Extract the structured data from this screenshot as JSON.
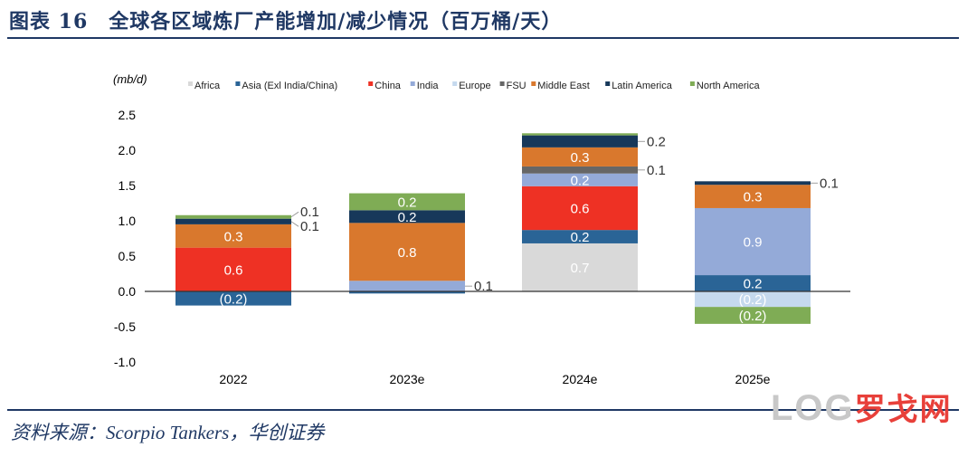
{
  "title": "图表 16　全球各区域炼厂产能增加/减少情况（百万桶/天）",
  "source": "资料来源：Scorpio Tankers，华创证券",
  "logo": {
    "text": "LOG",
    "cn": "罗戈网"
  },
  "chart_data": {
    "type": "bar",
    "stacked": true,
    "ylabel": "(mb/d)",
    "ylim": [
      -1.0,
      2.5
    ],
    "yticks": [
      "2.5",
      "2.0",
      "1.5",
      "1.0",
      "0.5",
      "0.0",
      "-0.5",
      "-1.0"
    ],
    "ytick_values": [
      2.5,
      2.0,
      1.5,
      1.0,
      0.5,
      0.0,
      -0.5,
      -1.0
    ],
    "categories": [
      "2022",
      "2023e",
      "2024e",
      "2025e"
    ],
    "legend_position": "top",
    "grid": false,
    "series": [
      {
        "name": "Africa",
        "color": "#d9d9d9",
        "values": [
          0,
          0,
          0.68,
          0
        ],
        "labels": [
          "",
          "",
          "0.7",
          ""
        ]
      },
      {
        "name": "Asia (Exl India/China)",
        "color": "#2a6496",
        "values": [
          -0.2,
          -0.03,
          0.19,
          0.23
        ],
        "labels": [
          "(0.2)",
          "",
          "0.2",
          "0.2"
        ]
      },
      {
        "name": "China",
        "color": "#ee3124",
        "values": [
          0.62,
          0,
          0.62,
          0
        ],
        "labels": [
          "0.6",
          "",
          "0.6",
          ""
        ]
      },
      {
        "name": "India",
        "color": "#94aad8",
        "values": [
          0,
          0.15,
          0.18,
          0.95
        ],
        "labels": [
          "",
          "0.1",
          "0.2",
          "0.9"
        ]
      },
      {
        "name": "Europe",
        "color": "#c5d9ee",
        "values": [
          0,
          0,
          0,
          -0.22
        ],
        "labels": [
          "",
          "",
          "",
          "(0.2)"
        ]
      },
      {
        "name": "FSU",
        "color": "#666666",
        "values": [
          0,
          0,
          0.1,
          0
        ],
        "labels": [
          "",
          "",
          "0.1",
          ""
        ]
      },
      {
        "name": "Middle East",
        "color": "#d9782d",
        "values": [
          0.33,
          0.82,
          0.27,
          0.33
        ],
        "labels": [
          "0.3",
          "0.8",
          "0.3",
          "0.3"
        ]
      },
      {
        "name": "Latin America",
        "color": "#17385a",
        "values": [
          0.08,
          0.18,
          0.17,
          0.05
        ],
        "labels": [
          "0.1",
          "0.2",
          "0.2",
          "0.1"
        ]
      },
      {
        "name": "North America",
        "color": "#7fac55",
        "values": [
          0.05,
          0.24,
          0.03,
          -0.24
        ],
        "labels": [
          "0.1",
          "0.2",
          "",
          "(0.2)"
        ]
      }
    ]
  }
}
